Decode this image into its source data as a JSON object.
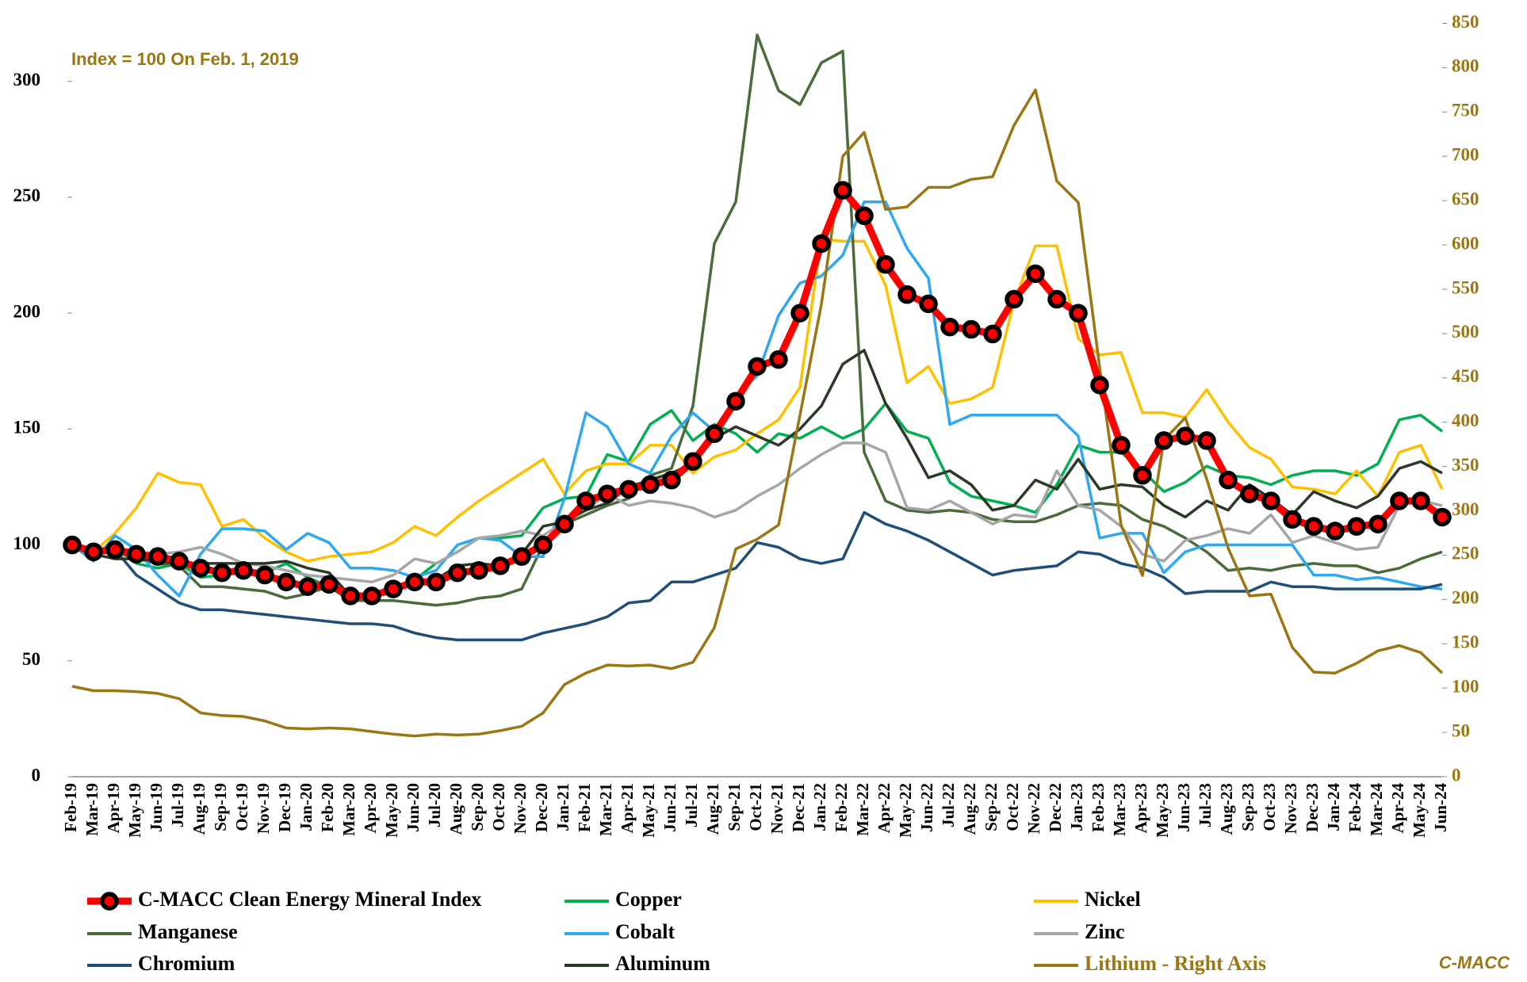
{
  "chart_data": {
    "type": "line",
    "annotation": "Index = 100 On Feb. 1, 2019",
    "source": "C-MACC",
    "categories": [
      "Feb-19",
      "Mar-19",
      "Apr-19",
      "May-19",
      "Jun-19",
      "Jul-19",
      "Aug-19",
      "Sep-19",
      "Oct-19",
      "Nov-19",
      "Dec-19",
      "Jan-20",
      "Feb-20",
      "Mar-20",
      "Apr-20",
      "May-20",
      "Jun-20",
      "Jul-20",
      "Aug-20",
      "Sep-20",
      "Oct-20",
      "Nov-20",
      "Dec-20",
      "Jan-21",
      "Feb-21",
      "Mar-21",
      "Apr-21",
      "May-21",
      "Jun-21",
      "Jul-21",
      "Aug-21",
      "Sep-21",
      "Oct-21",
      "Nov-21",
      "Dec-21",
      "Jan-22",
      "Feb-22",
      "Mar-22",
      "Apr-22",
      "May-22",
      "Jun-22",
      "Jul-22",
      "Aug-22",
      "Sep-22",
      "Oct-22",
      "Nov-22",
      "Dec-22",
      "Jan-23",
      "Feb-23",
      "Mar-23",
      "Apr-23",
      "May-23",
      "Jun-23",
      "Jul-23",
      "Aug-23",
      "Sep-23",
      "Oct-23",
      "Nov-23",
      "Dec-23",
      "Jan-24",
      "Feb-24",
      "Mar-24",
      "Apr-24",
      "May-24",
      "Jun-24"
    ],
    "ylim": [
      0,
      325
    ],
    "yticks": [
      0,
      50,
      100,
      150,
      200,
      250,
      300
    ],
    "y2lim": [
      0,
      850
    ],
    "y2ticks": [
      0,
      50,
      100,
      150,
      200,
      250,
      300,
      350,
      400,
      450,
      500,
      550,
      600,
      650,
      700,
      750,
      800,
      850
    ],
    "y2_color": "#9c7612",
    "grid": false,
    "series": [
      {
        "name": "C-MACC Clean Energy Mineral Index",
        "color": "#ff0000",
        "marker": "circle",
        "marker_color": "#000000",
        "values": [
          100,
          97,
          98,
          96,
          95,
          93,
          90,
          88,
          89,
          87,
          84,
          82,
          83,
          78,
          78,
          81,
          84,
          84,
          88,
          89,
          91,
          95,
          100,
          109,
          119,
          122,
          124,
          126,
          128,
          136,
          148,
          162,
          177,
          180,
          200,
          230,
          253,
          242,
          221,
          208,
          204,
          194,
          193,
          191,
          206,
          217,
          206,
          200,
          169,
          143,
          130,
          145,
          147,
          145,
          128,
          122,
          119,
          111,
          108,
          106,
          108,
          109,
          119,
          119,
          112
        ]
      },
      {
        "name": "Copper",
        "color": "#00b050",
        "values": [
          100,
          96,
          99,
          92,
          90,
          92,
          86,
          87,
          89,
          88,
          92,
          86,
          82,
          76,
          78,
          80,
          85,
          92,
          97,
          103,
          103,
          104,
          116,
          120,
          121,
          139,
          136,
          152,
          158,
          145,
          152,
          148,
          140,
          148,
          146,
          151,
          146,
          150,
          161,
          149,
          146,
          127,
          121,
          119,
          117,
          114,
          126,
          143,
          140,
          140,
          132,
          123,
          127,
          134,
          130,
          129,
          126,
          130,
          132,
          132,
          130,
          135,
          154,
          156,
          149
        ]
      },
      {
        "name": "Nickel",
        "color": "#ffc000",
        "values": [
          100,
          97,
          105,
          116,
          131,
          127,
          126,
          108,
          111,
          103,
          97,
          93,
          95,
          96,
          97,
          101,
          108,
          104,
          112,
          119,
          125,
          131,
          137,
          122,
          132,
          135,
          135,
          143,
          143,
          131,
          138,
          141,
          148,
          154,
          168,
          232,
          231,
          231,
          212,
          170,
          177,
          161,
          163,
          168,
          205,
          229,
          229,
          189,
          182,
          183,
          157,
          157,
          155,
          167,
          153,
          142,
          137,
          125,
          124,
          122,
          132,
          121,
          140,
          143,
          124
        ]
      },
      {
        "name": "Manganese",
        "color": "#4a6b3c",
        "values": [
          100,
          97,
          97,
          94,
          92,
          91,
          82,
          82,
          81,
          80,
          77,
          79,
          82,
          76,
          76,
          76,
          75,
          74,
          75,
          77,
          78,
          81,
          100,
          109,
          113,
          117,
          120,
          130,
          133,
          160,
          230,
          248,
          320,
          296,
          290,
          308,
          313,
          140,
          119,
          115,
          114,
          115,
          114,
          111,
          110,
          110,
          113,
          117,
          118,
          117,
          111,
          108,
          103,
          97,
          89,
          90,
          89,
          91,
          92,
          91,
          91,
          88,
          90,
          94,
          97
        ]
      },
      {
        "name": "Cobalt",
        "color": "#2ea8f0",
        "values": [
          100,
          93,
          104,
          98,
          87,
          78,
          96,
          107,
          107,
          106,
          98,
          105,
          101,
          90,
          90,
          89,
          86,
          89,
          100,
          103,
          102,
          95,
          95,
          120,
          157,
          151,
          135,
          131,
          147,
          157,
          149,
          164,
          173,
          199,
          213,
          216,
          225,
          248,
          248,
          228,
          215,
          152,
          156,
          156,
          156,
          156,
          156,
          147,
          103,
          105,
          105,
          88,
          97,
          100,
          100,
          100,
          100,
          100,
          87,
          87,
          85,
          86,
          84,
          82,
          81
        ]
      },
      {
        "name": "Zinc",
        "color": "#a6a6a6",
        "values": [
          100,
          98,
          98,
          96,
          96,
          97,
          99,
          96,
          92,
          91,
          89,
          87,
          86,
          85,
          84,
          87,
          94,
          92,
          97,
          103,
          104,
          106,
          104,
          110,
          115,
          122,
          117,
          119,
          118,
          116,
          112,
          115,
          121,
          126,
          133,
          139,
          144,
          144,
          140,
          116,
          115,
          119,
          114,
          109,
          113,
          112,
          132,
          117,
          115,
          108,
          96,
          93,
          102,
          104,
          107,
          105,
          113,
          101,
          104,
          101,
          98,
          99,
          117,
          119,
          117
        ]
      },
      {
        "name": "Chromium",
        "color": "#1f4e79",
        "values": [
          100,
          97,
          98,
          87,
          81,
          75,
          72,
          72,
          71,
          70,
          69,
          68,
          67,
          66,
          66,
          65,
          62,
          60,
          59,
          59,
          59,
          59,
          62,
          64,
          66,
          69,
          75,
          76,
          84,
          84,
          87,
          90,
          101,
          99,
          94,
          92,
          94,
          114,
          109,
          106,
          102,
          97,
          92,
          87,
          89,
          90,
          91,
          97,
          96,
          92,
          90,
          86,
          79,
          80,
          80,
          80,
          84,
          82,
          82,
          81,
          81,
          81,
          81,
          81,
          83
        ]
      },
      {
        "name": "Aluminum",
        "color": "#2b3a26",
        "values": [
          100,
          96,
          94,
          94,
          93,
          92,
          92,
          92,
          92,
          92,
          93,
          90,
          88,
          78,
          79,
          81,
          83,
          85,
          91,
          92,
          91,
          96,
          108,
          110,
          115,
          118,
          125,
          128,
          131,
          135,
          146,
          151,
          147,
          143,
          150,
          160,
          178,
          184,
          161,
          146,
          129,
          132,
          126,
          115,
          117,
          128,
          124,
          137,
          124,
          126,
          125,
          117,
          112,
          119,
          115,
          126,
          120,
          113,
          123,
          119,
          116,
          121,
          133,
          136,
          131
        ]
      },
      {
        "name": "Lithium - Right Axis",
        "color": "#9c7612",
        "axis": "y2",
        "values": [
          102,
          97,
          97,
          96,
          94,
          88,
          72,
          69,
          68,
          63,
          55,
          54,
          55,
          54,
          51,
          48,
          46,
          48,
          47,
          48,
          52,
          57,
          72,
          104,
          117,
          126,
          125,
          126,
          122,
          129,
          168,
          257,
          268,
          284,
          408,
          533,
          700,
          727,
          640,
          643,
          665,
          665,
          674,
          677,
          735,
          775,
          672,
          648,
          462,
          284,
          227,
          380,
          405,
          336,
          258,
          204,
          206,
          146,
          118,
          117,
          128,
          142,
          148,
          140,
          117
        ]
      }
    ]
  }
}
